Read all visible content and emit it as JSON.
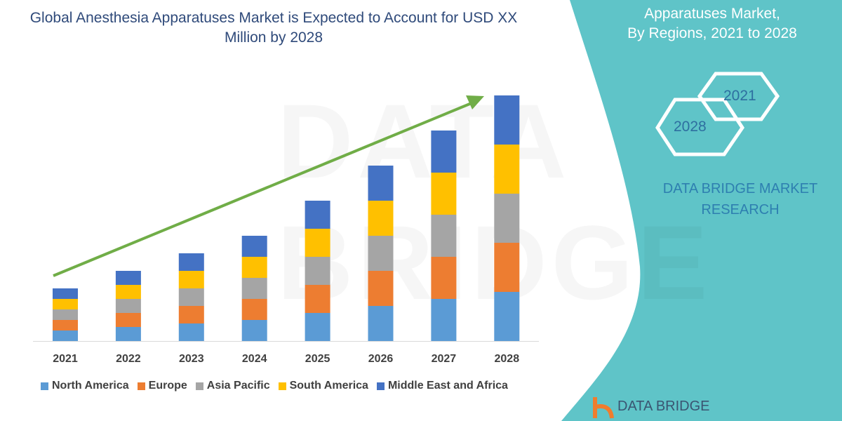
{
  "title": "Global Anesthesia Apparatuses Market is Expected to Account for USD XX Million by 2028",
  "side_panel": {
    "title_line1": "Apparatuses Market,",
    "title_line2": "By Regions,  2021 to 2028",
    "hex_2021": "2021",
    "hex_2028": "2028",
    "brand_line1": "DATA BRIDGE MARKET",
    "brand_line2": "RESEARCH",
    "logo_text": "DATA BRIDGE",
    "color": "#5fc4c8"
  },
  "watermark": "DATA BRIDGE",
  "chart_data": {
    "type": "bar",
    "stacked": true,
    "title": "",
    "xlabel": "",
    "ylabel": "",
    "categories": [
      "2021",
      "2022",
      "2023",
      "2024",
      "2025",
      "2026",
      "2027",
      "2028"
    ],
    "series": [
      {
        "name": "North America",
        "color": "#5b9bd5",
        "values": [
          15,
          20,
          25,
          30,
          40,
          50,
          60,
          70
        ]
      },
      {
        "name": "Europe",
        "color": "#ed7d31",
        "values": [
          15,
          20,
          25,
          30,
          40,
          50,
          60,
          70
        ]
      },
      {
        "name": "Asia Pacific",
        "color": "#a5a5a5",
        "values": [
          15,
          20,
          25,
          30,
          40,
          50,
          60,
          70
        ]
      },
      {
        "name": "South America",
        "color": "#ffc000",
        "values": [
          15,
          20,
          25,
          30,
          40,
          50,
          60,
          70
        ]
      },
      {
        "name": "Middle East and Africa",
        "color": "#4472c4",
        "values": [
          15,
          20,
          25,
          30,
          40,
          50,
          60,
          70
        ]
      }
    ],
    "trend_arrow_color": "#70ad47",
    "legend_position": "bottom",
    "grid": false
  }
}
